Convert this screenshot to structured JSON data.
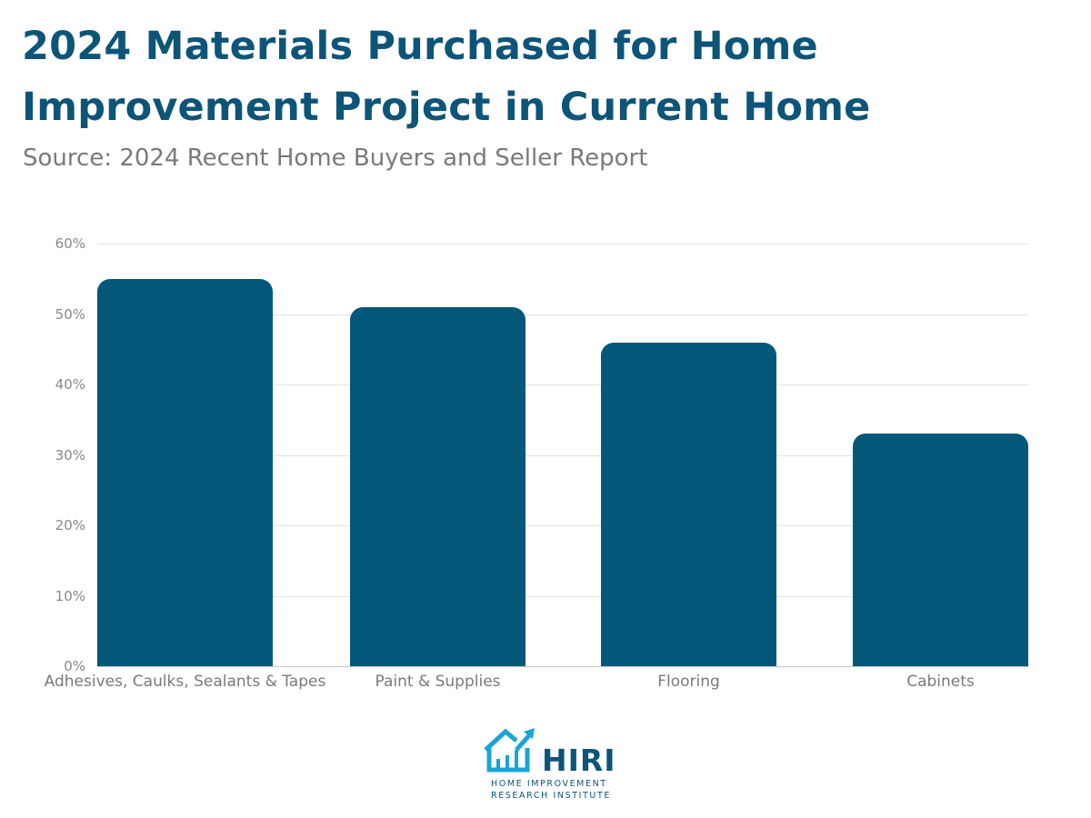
{
  "header": {
    "title": "2024 Materials Purchased for Home Improvement Project in Current Home",
    "subtitle": "Source: 2024 Recent Home Buyers and Seller Report"
  },
  "colors": {
    "bar": "#03587a",
    "title": "#0d5578",
    "grid": "#e3e3e3",
    "axis_text": "#888888"
  },
  "y_ticks": [
    "0%",
    "10%",
    "20%",
    "30%",
    "40%",
    "50%",
    "60%"
  ],
  "logo": {
    "name": "HIRI",
    "line1": "HOME IMPROVEMENT",
    "line2": "RESEARCH INSTITUTE",
    "icon": "house-arrow-icon"
  },
  "chart_data": {
    "type": "bar",
    "title": "2024 Materials Purchased for Home Improvement Project in Current Home",
    "subtitle": "Source: 2024 Recent Home Buyers and Seller Report",
    "categories": [
      "Adhesives, Caulks, Sealants & Tapes",
      "Paint & Supplies",
      "Flooring",
      "Cabinets"
    ],
    "values": [
      55,
      51,
      46,
      33
    ],
    "unit": "%",
    "xlabel": "",
    "ylabel": "",
    "ylim": [
      0,
      60
    ],
    "yticks": [
      0,
      10,
      20,
      30,
      40,
      50,
      60
    ],
    "grid": true,
    "legend": null
  }
}
